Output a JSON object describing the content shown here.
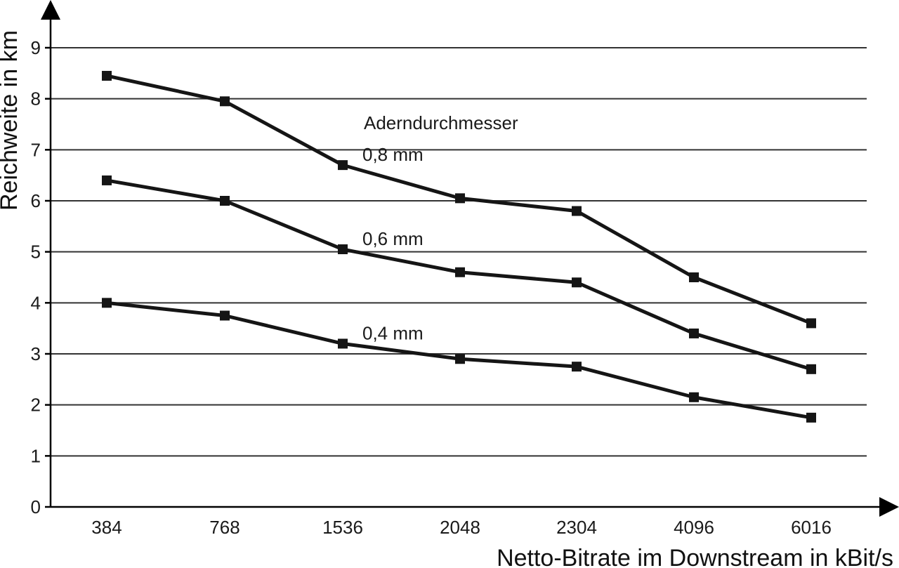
{
  "chart_data": {
    "type": "line",
    "title": "",
    "xlabel": "Netto-Bitrate im Downstream in kBit/s",
    "ylabel": "Reichweite in km",
    "categories": [
      "384",
      "768",
      "1536",
      "2048",
      "2304",
      "4096",
      "6016"
    ],
    "ylim": [
      0,
      9
    ],
    "yticks": [
      "0",
      "1",
      "2",
      "3",
      "4",
      "5",
      "6",
      "7",
      "8",
      "9"
    ],
    "grid": true,
    "annotation_heading": "Aderndurchmesser",
    "series": [
      {
        "name": "0,8 mm",
        "values": [
          8.45,
          7.95,
          6.7,
          6.05,
          5.8,
          4.5,
          3.6
        ]
      },
      {
        "name": "0,6 mm",
        "values": [
          6.4,
          6.0,
          5.05,
          4.6,
          4.4,
          3.4,
          2.7
        ]
      },
      {
        "name": "0,4 mm",
        "values": [
          4.0,
          3.75,
          3.2,
          2.9,
          2.75,
          2.15,
          1.75
        ]
      }
    ],
    "colors": {
      "line": "#151515",
      "grid": "#333333",
      "background": "#ffffff"
    }
  }
}
